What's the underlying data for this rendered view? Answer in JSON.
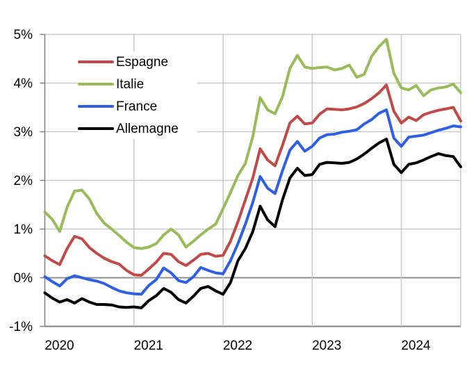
{
  "chart_data": {
    "type": "line",
    "title": "",
    "xlabel": "",
    "ylabel": "",
    "y_unit": "%",
    "ylim": [
      -1,
      5
    ],
    "y_ticks": [
      5,
      4,
      3,
      2,
      1,
      0,
      -1
    ],
    "y_tick_labels": [
      "5%",
      "4%",
      "3%",
      "2%",
      "1%",
      "0%",
      "-1%"
    ],
    "x_year_labels": [
      "2020",
      "2021",
      "2022",
      "2023",
      "2024"
    ],
    "frequency": "monthly",
    "grid": true,
    "legend_position": "top-left-inside",
    "months": [
      "2020-01",
      "2020-02",
      "2020-03",
      "2020-04",
      "2020-05",
      "2020-06",
      "2020-07",
      "2020-08",
      "2020-09",
      "2020-10",
      "2020-11",
      "2020-12",
      "2021-01",
      "2021-02",
      "2021-03",
      "2021-04",
      "2021-05",
      "2021-06",
      "2021-07",
      "2021-08",
      "2021-09",
      "2021-10",
      "2021-11",
      "2021-12",
      "2022-01",
      "2022-02",
      "2022-03",
      "2022-04",
      "2022-05",
      "2022-06",
      "2022-07",
      "2022-08",
      "2022-09",
      "2022-10",
      "2022-11",
      "2022-12",
      "2023-01",
      "2023-02",
      "2023-03",
      "2023-04",
      "2023-05",
      "2023-06",
      "2023-07",
      "2023-08",
      "2023-09",
      "2023-10",
      "2023-11",
      "2023-12",
      "2024-01",
      "2024-02",
      "2024-03",
      "2024-04",
      "2024-05",
      "2024-06",
      "2024-07",
      "2024-08",
      "2024-09"
    ],
    "series": [
      {
        "name": "Espagne",
        "color": "#bf4a47",
        "values": [
          0.45,
          0.35,
          0.27,
          0.6,
          0.85,
          0.8,
          0.62,
          0.5,
          0.4,
          0.33,
          0.28,
          0.15,
          0.06,
          0.05,
          0.18,
          0.32,
          0.5,
          0.48,
          0.33,
          0.25,
          0.36,
          0.48,
          0.5,
          0.44,
          0.46,
          0.75,
          1.15,
          1.6,
          2.05,
          2.65,
          2.42,
          2.3,
          2.72,
          3.18,
          3.32,
          3.16,
          3.18,
          3.36,
          3.47,
          3.46,
          3.45,
          3.47,
          3.51,
          3.58,
          3.68,
          3.8,
          3.96,
          3.42,
          3.18,
          3.3,
          3.23,
          3.35,
          3.4,
          3.44,
          3.47,
          3.5,
          3.22
        ]
      },
      {
        "name": "Italie",
        "color": "#9abb59",
        "values": [
          1.35,
          1.2,
          0.95,
          1.45,
          1.78,
          1.8,
          1.62,
          1.32,
          1.12,
          1.0,
          0.87,
          0.73,
          0.62,
          0.6,
          0.63,
          0.7,
          0.88,
          1.0,
          0.88,
          0.63,
          0.75,
          0.88,
          1.0,
          1.1,
          1.42,
          1.75,
          2.1,
          2.35,
          2.9,
          3.7,
          3.45,
          3.37,
          3.72,
          4.3,
          4.57,
          4.33,
          4.3,
          4.32,
          4.33,
          4.27,
          4.3,
          4.37,
          4.12,
          4.18,
          4.55,
          4.75,
          4.9,
          4.2,
          3.9,
          3.86,
          3.95,
          3.74,
          3.86,
          3.9,
          3.92,
          3.98,
          3.8
        ]
      },
      {
        "name": "France",
        "color": "#2f5fe3",
        "values": [
          0.02,
          -0.08,
          -0.17,
          -0.02,
          0.04,
          0.0,
          -0.04,
          -0.07,
          -0.12,
          -0.2,
          -0.27,
          -0.31,
          -0.33,
          -0.34,
          -0.16,
          -0.04,
          0.2,
          0.1,
          -0.06,
          -0.1,
          0.02,
          0.21,
          0.15,
          0.1,
          0.08,
          0.35,
          0.7,
          1.1,
          1.55,
          2.08,
          1.84,
          1.73,
          2.2,
          2.62,
          2.8,
          2.6,
          2.7,
          2.87,
          2.94,
          2.95,
          2.99,
          3.01,
          3.04,
          3.16,
          3.25,
          3.38,
          3.45,
          2.87,
          2.7,
          2.89,
          2.91,
          2.93,
          2.98,
          3.03,
          3.07,
          3.12,
          3.1
        ]
      },
      {
        "name": "Allemagne",
        "color": "#000000",
        "values": [
          -0.31,
          -0.42,
          -0.5,
          -0.45,
          -0.52,
          -0.43,
          -0.5,
          -0.55,
          -0.55,
          -0.56,
          -0.6,
          -0.61,
          -0.6,
          -0.62,
          -0.47,
          -0.37,
          -0.22,
          -0.3,
          -0.45,
          -0.52,
          -0.38,
          -0.22,
          -0.18,
          -0.27,
          -0.34,
          -0.1,
          0.35,
          0.6,
          0.95,
          1.47,
          1.19,
          1.05,
          1.6,
          2.05,
          2.25,
          2.1,
          2.12,
          2.33,
          2.37,
          2.36,
          2.35,
          2.37,
          2.44,
          2.54,
          2.66,
          2.77,
          2.85,
          2.33,
          2.16,
          2.33,
          2.36,
          2.42,
          2.49,
          2.55,
          2.51,
          2.49,
          2.28
        ]
      }
    ]
  },
  "style_colors": {
    "background": "#ffffff",
    "gridline": "#c9c9c9",
    "zero_line": "#8f8f8f",
    "axis_line": "#808080",
    "label_text": "#000000"
  }
}
